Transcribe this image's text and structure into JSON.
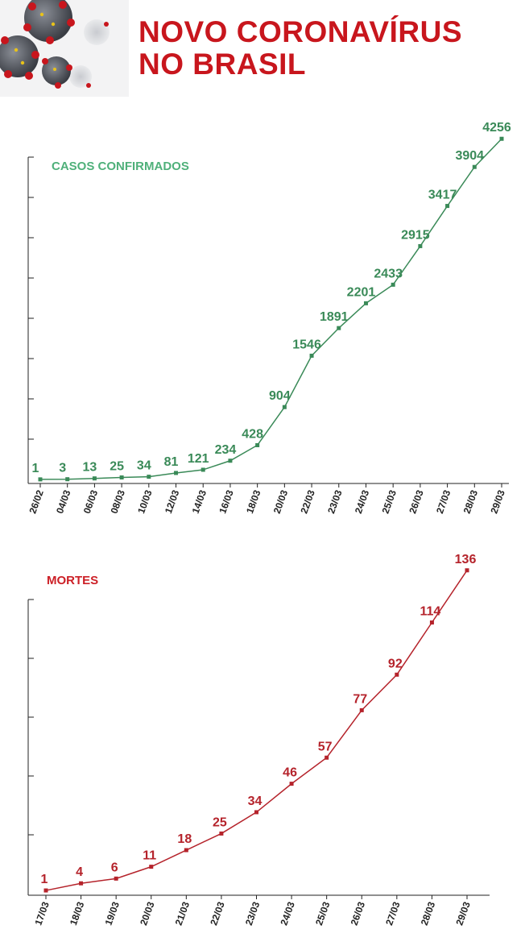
{
  "header": {
    "title_line1": "NOVO CORONAVÍRUS",
    "title_line2": "NO BRASIL"
  },
  "colors": {
    "title": "#c8161d",
    "cases": "#3a8a58",
    "cases_title": "#4fb07a",
    "deaths": "#b5232b",
    "deaths_title": "#cc1f26"
  },
  "chart_data": [
    {
      "type": "line",
      "title": "CASOS CONFIRMADOS",
      "categories": [
        "26/02",
        "04/03",
        "06/03",
        "08/03",
        "10/03",
        "12/03",
        "14/03",
        "16/03",
        "18/03",
        "20/03",
        "22/03",
        "23/03",
        "24/03",
        "25/03",
        "26/03",
        "27/03",
        "28/03",
        "29/03"
      ],
      "values": [
        1,
        3,
        13,
        25,
        34,
        81,
        121,
        234,
        428,
        904,
        1546,
        1891,
        2201,
        2433,
        2915,
        3417,
        3904,
        4256
      ],
      "data_labels": [
        "1",
        "3",
        "13",
        "25",
        "34",
        "81",
        "121",
        "234",
        "428",
        "904",
        "1546",
        "1891",
        "2201",
        "2433",
        "2915",
        "3417",
        "3904",
        "4256"
      ],
      "ylim": [
        0,
        4500
      ],
      "grid": false
    },
    {
      "type": "line",
      "title": "MORTES",
      "categories": [
        "17/03",
        "18/03",
        "19/03",
        "20/03",
        "21/03",
        "22/03",
        "23/03",
        "24/03",
        "25/03",
        "26/03",
        "27/03",
        "28/03",
        "29/03"
      ],
      "values": [
        1,
        4,
        6,
        11,
        18,
        25,
        34,
        46,
        57,
        77,
        92,
        114,
        136
      ],
      "data_labels": [
        "1",
        "4",
        "6",
        "11",
        "18",
        "25",
        "34",
        "46",
        "57",
        "77",
        "92",
        "114",
        "136"
      ],
      "ylim": [
        0,
        140
      ],
      "grid": false
    }
  ]
}
